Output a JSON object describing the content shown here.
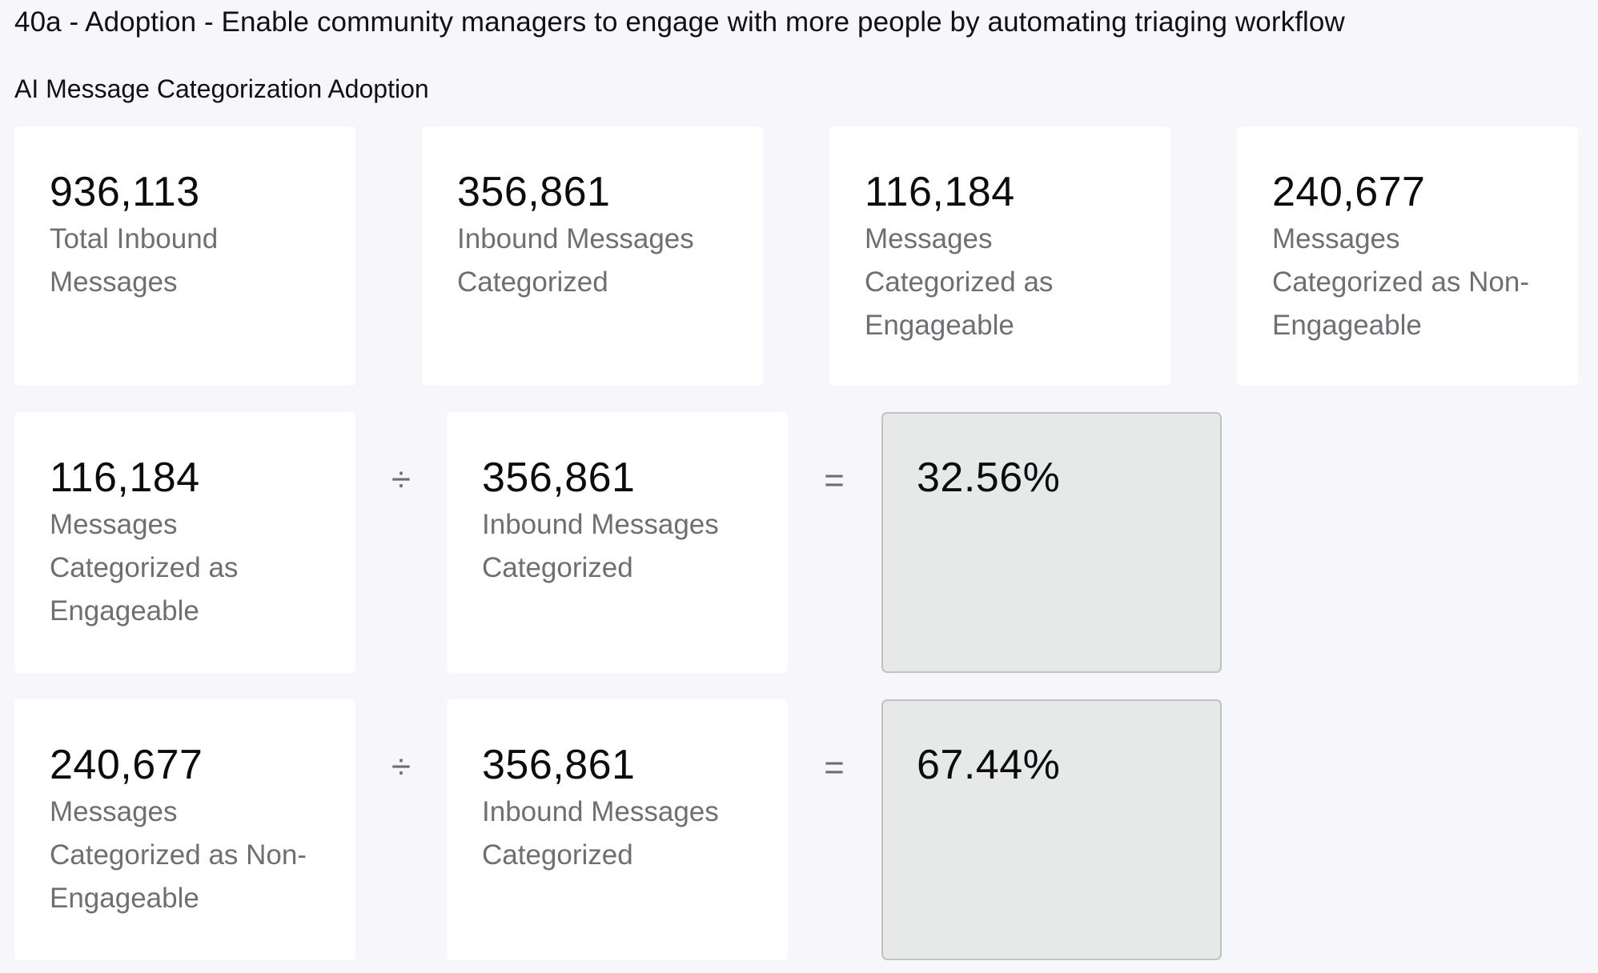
{
  "header": {
    "title": "40a - Adoption - Enable community managers to engage with more people by automating triaging workflow",
    "subtitle": "AI Message Categorization Adoption"
  },
  "summary_cards": [
    {
      "value": "936,113",
      "label": "Total Inbound Messages"
    },
    {
      "value": "356,861",
      "label": "Inbound Messages Categorized"
    },
    {
      "value": "116,184",
      "label": "Messages Categorized as Engageable"
    },
    {
      "value": "240,677",
      "label": "Messages Categorized as Non-Engageable"
    }
  ],
  "calculations": [
    {
      "numerator": {
        "value": "116,184",
        "label": "Messages Categorized as Engageable"
      },
      "divide_symbol": "÷",
      "denominator": {
        "value": "356,861",
        "label": "Inbound Messages Categorized"
      },
      "equals_symbol": "=",
      "result": "32.56%"
    },
    {
      "numerator": {
        "value": "240,677",
        "label": "Messages Categorized as Non-Engageable"
      },
      "divide_symbol": "÷",
      "denominator": {
        "value": "356,861",
        "label": "Inbound Messages Categorized"
      },
      "equals_symbol": "=",
      "result": "67.44%"
    }
  ],
  "colors": {
    "page_background": "#f7f7fb",
    "card_background": "#ffffff",
    "result_background": "#e6e9e7",
    "label_text": "#6e6f75",
    "value_text": "#0c0c10"
  }
}
